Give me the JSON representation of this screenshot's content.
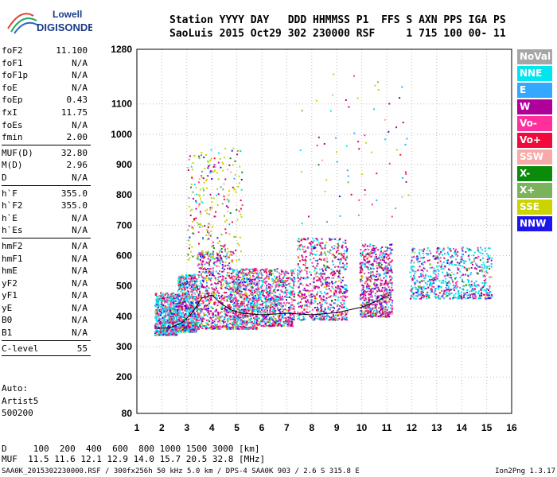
{
  "logo": {
    "line1": "Lowell",
    "line2": "DIGISONDE"
  },
  "header": {
    "line1": "Station YYYY DAY   DDD HHMMSS P1  FFS S AXN PPS IGA PS",
    "line2": "SaoLuis 2015 Oct29 302 230000 RSF     1 715 100 00- 11"
  },
  "params": {
    "group1": [
      {
        "label": "foF2",
        "value": "11.100"
      },
      {
        "label": "foF1",
        "value": "N/A"
      },
      {
        "label": "foF1p",
        "value": "N/A"
      },
      {
        "label": "foE",
        "value": "N/A"
      },
      {
        "label": "foEp",
        "value": "0.43"
      },
      {
        "label": "fxI",
        "value": "11.75"
      },
      {
        "label": "foEs",
        "value": "N/A"
      },
      {
        "label": "fmin",
        "value": "2.00"
      }
    ],
    "group2": [
      {
        "label": "MUF(D)",
        "value": "32.80"
      },
      {
        "label": "M(D)",
        "value": "2.96"
      },
      {
        "label": "D",
        "value": "N/A"
      }
    ],
    "group3": [
      {
        "label": "h`F",
        "value": "355.0"
      },
      {
        "label": "h`F2",
        "value": "355.0"
      },
      {
        "label": "h`E",
        "value": "N/A"
      },
      {
        "label": "h`Es",
        "value": "N/A"
      }
    ],
    "group4": [
      {
        "label": "hmF2",
        "value": "N/A"
      },
      {
        "label": "hmF1",
        "value": "N/A"
      },
      {
        "label": "hmE",
        "value": "N/A"
      },
      {
        "label": "yF2",
        "value": "N/A"
      },
      {
        "label": "yF1",
        "value": "N/A"
      },
      {
        "label": "yE",
        "value": "N/A"
      },
      {
        "label": "B0",
        "value": "N/A"
      },
      {
        "label": "B1",
        "value": "N/A"
      }
    ],
    "group5": [
      {
        "label": "C-level",
        "value": "55"
      }
    ]
  },
  "auto": {
    "line1": "Auto:",
    "line2": "Artist5",
    "line3": "500200"
  },
  "bottom": {
    "line1": "D     100  200  400  600  800 1000 1500 3000 [km]",
    "line2": "MUF  11.5 11.6 12.1 12.9 14.0 15.7 20.5 32.8 [MHz]"
  },
  "footer": {
    "left": "SAA0K_2015302230000.RSF / 300fx256h 50 kHz 5.0 km / DPS-4 SAA0K 903 / 2.6 S 315.8 E",
    "right": "Ion2Png 1.3.17"
  },
  "legend": [
    {
      "label": "NoVal",
      "bg": "#a6a6a6",
      "fg": "#ffffff"
    },
    {
      "label": "NNE",
      "bg": "#00e5ee",
      "fg": "#ffffff"
    },
    {
      "label": "E",
      "bg": "#34a8ff",
      "fg": "#ffffff"
    },
    {
      "label": "W",
      "bg": "#b0009b",
      "fg": "#ffffff"
    },
    {
      "label": "Vo-",
      "bg": "#ff2f9c",
      "fg": "#ffffff"
    },
    {
      "label": "Vo+",
      "bg": "#f00a3c",
      "fg": "#ffffff"
    },
    {
      "label": "SSW",
      "bg": "#f7aaa8",
      "fg": "#ffffff"
    },
    {
      "label": "X-",
      "bg": "#0b8a0b",
      "fg": "#ffffff"
    },
    {
      "label": "X+",
      "bg": "#7ab35c",
      "fg": "#ffffff"
    },
    {
      "label": "SSE",
      "bg": "#cbd400",
      "fg": "#ffffff"
    },
    {
      "label": "NNW",
      "bg": "#1e15ee",
      "fg": "#ffffff"
    }
  ],
  "chart_data": {
    "type": "scatter",
    "xlim": [
      1,
      16
    ],
    "ylim": [
      80,
      1280
    ],
    "x_ticks": [
      1,
      2,
      3,
      4,
      5,
      6,
      7,
      8,
      9,
      10,
      11,
      12,
      13,
      14,
      15,
      16
    ],
    "y_ticks": [
      80,
      200,
      300,
      400,
      500,
      600,
      700,
      800,
      900,
      1000,
      1100,
      1280
    ],
    "grid": true,
    "clusters": [
      {
        "x": [
          1.7,
          2.6
        ],
        "y": [
          340,
          480
        ],
        "weights": [
          0.4,
          0.05,
          0.08,
          0.15,
          0.12,
          0.08,
          0.02,
          0,
          0.02,
          0.08
        ]
      },
      {
        "x": [
          2.6,
          3.4
        ],
        "y": [
          350,
          540
        ],
        "weights": [
          0.3,
          0.05,
          0.1,
          0.2,
          0.1,
          0.07,
          0.02,
          0.01,
          0.05,
          0.1
        ]
      },
      {
        "x": [
          3.4,
          4.8
        ],
        "y": [
          360,
          620
        ],
        "weights": [
          0.15,
          0.05,
          0.25,
          0.2,
          0.1,
          0.05,
          0.02,
          0.03,
          0.1,
          0.05
        ]
      },
      {
        "x": [
          3.0,
          5.2
        ],
        "y": [
          580,
          960
        ],
        "weights": [
          0.05,
          0.05,
          0.15,
          0.05,
          0.05,
          0.05,
          0.05,
          0.1,
          0.4,
          0.05
        ]
      },
      {
        "x": [
          4.8,
          5.8
        ],
        "y": [
          360,
          560
        ],
        "weights": [
          0.25,
          0.05,
          0.1,
          0.25,
          0.1,
          0.05,
          0.02,
          0.02,
          0.08,
          0.08
        ]
      },
      {
        "x": [
          5.8,
          7.3
        ],
        "y": [
          370,
          560
        ],
        "weights": [
          0.25,
          0.05,
          0.15,
          0.25,
          0.1,
          0.05,
          0.02,
          0.02,
          0.05,
          0.06
        ]
      },
      {
        "x": [
          7.4,
          9.4
        ],
        "y": [
          390,
          660
        ],
        "weights": [
          0.2,
          0.05,
          0.3,
          0.15,
          0.1,
          0.05,
          0.02,
          0.03,
          0.04,
          0.06
        ]
      },
      {
        "x": [
          9.9,
          11.2
        ],
        "y": [
          400,
          640
        ],
        "weights": [
          0.1,
          0.1,
          0.3,
          0.2,
          0.1,
          0.07,
          0.03,
          0.03,
          0.04,
          0.03
        ]
      },
      {
        "x": [
          11.9,
          15.2
        ],
        "y": [
          460,
          630
        ],
        "weights": [
          0.35,
          0.15,
          0.2,
          0.12,
          0.05,
          0.03,
          0.02,
          0.02,
          0.02,
          0.04
        ]
      },
      {
        "x": [
          7.5,
          12.0
        ],
        "y": [
          700,
          1200
        ],
        "weights": [
          0.1,
          0.1,
          0.1,
          0.1,
          0.1,
          0.1,
          0.05,
          0.1,
          0.2,
          0.05
        ]
      }
    ],
    "trace": {
      "x": [
        1.8,
        2.3,
        2.8,
        3.2,
        3.6,
        4.0,
        4.4,
        4.8,
        5.2,
        6.0,
        7.0,
        8.0,
        9.0,
        10.0,
        10.6,
        11.1
      ],
      "y": [
        360,
        362,
        378,
        410,
        460,
        470,
        440,
        420,
        410,
        405,
        410,
        405,
        412,
        430,
        450,
        470
      ]
    }
  }
}
